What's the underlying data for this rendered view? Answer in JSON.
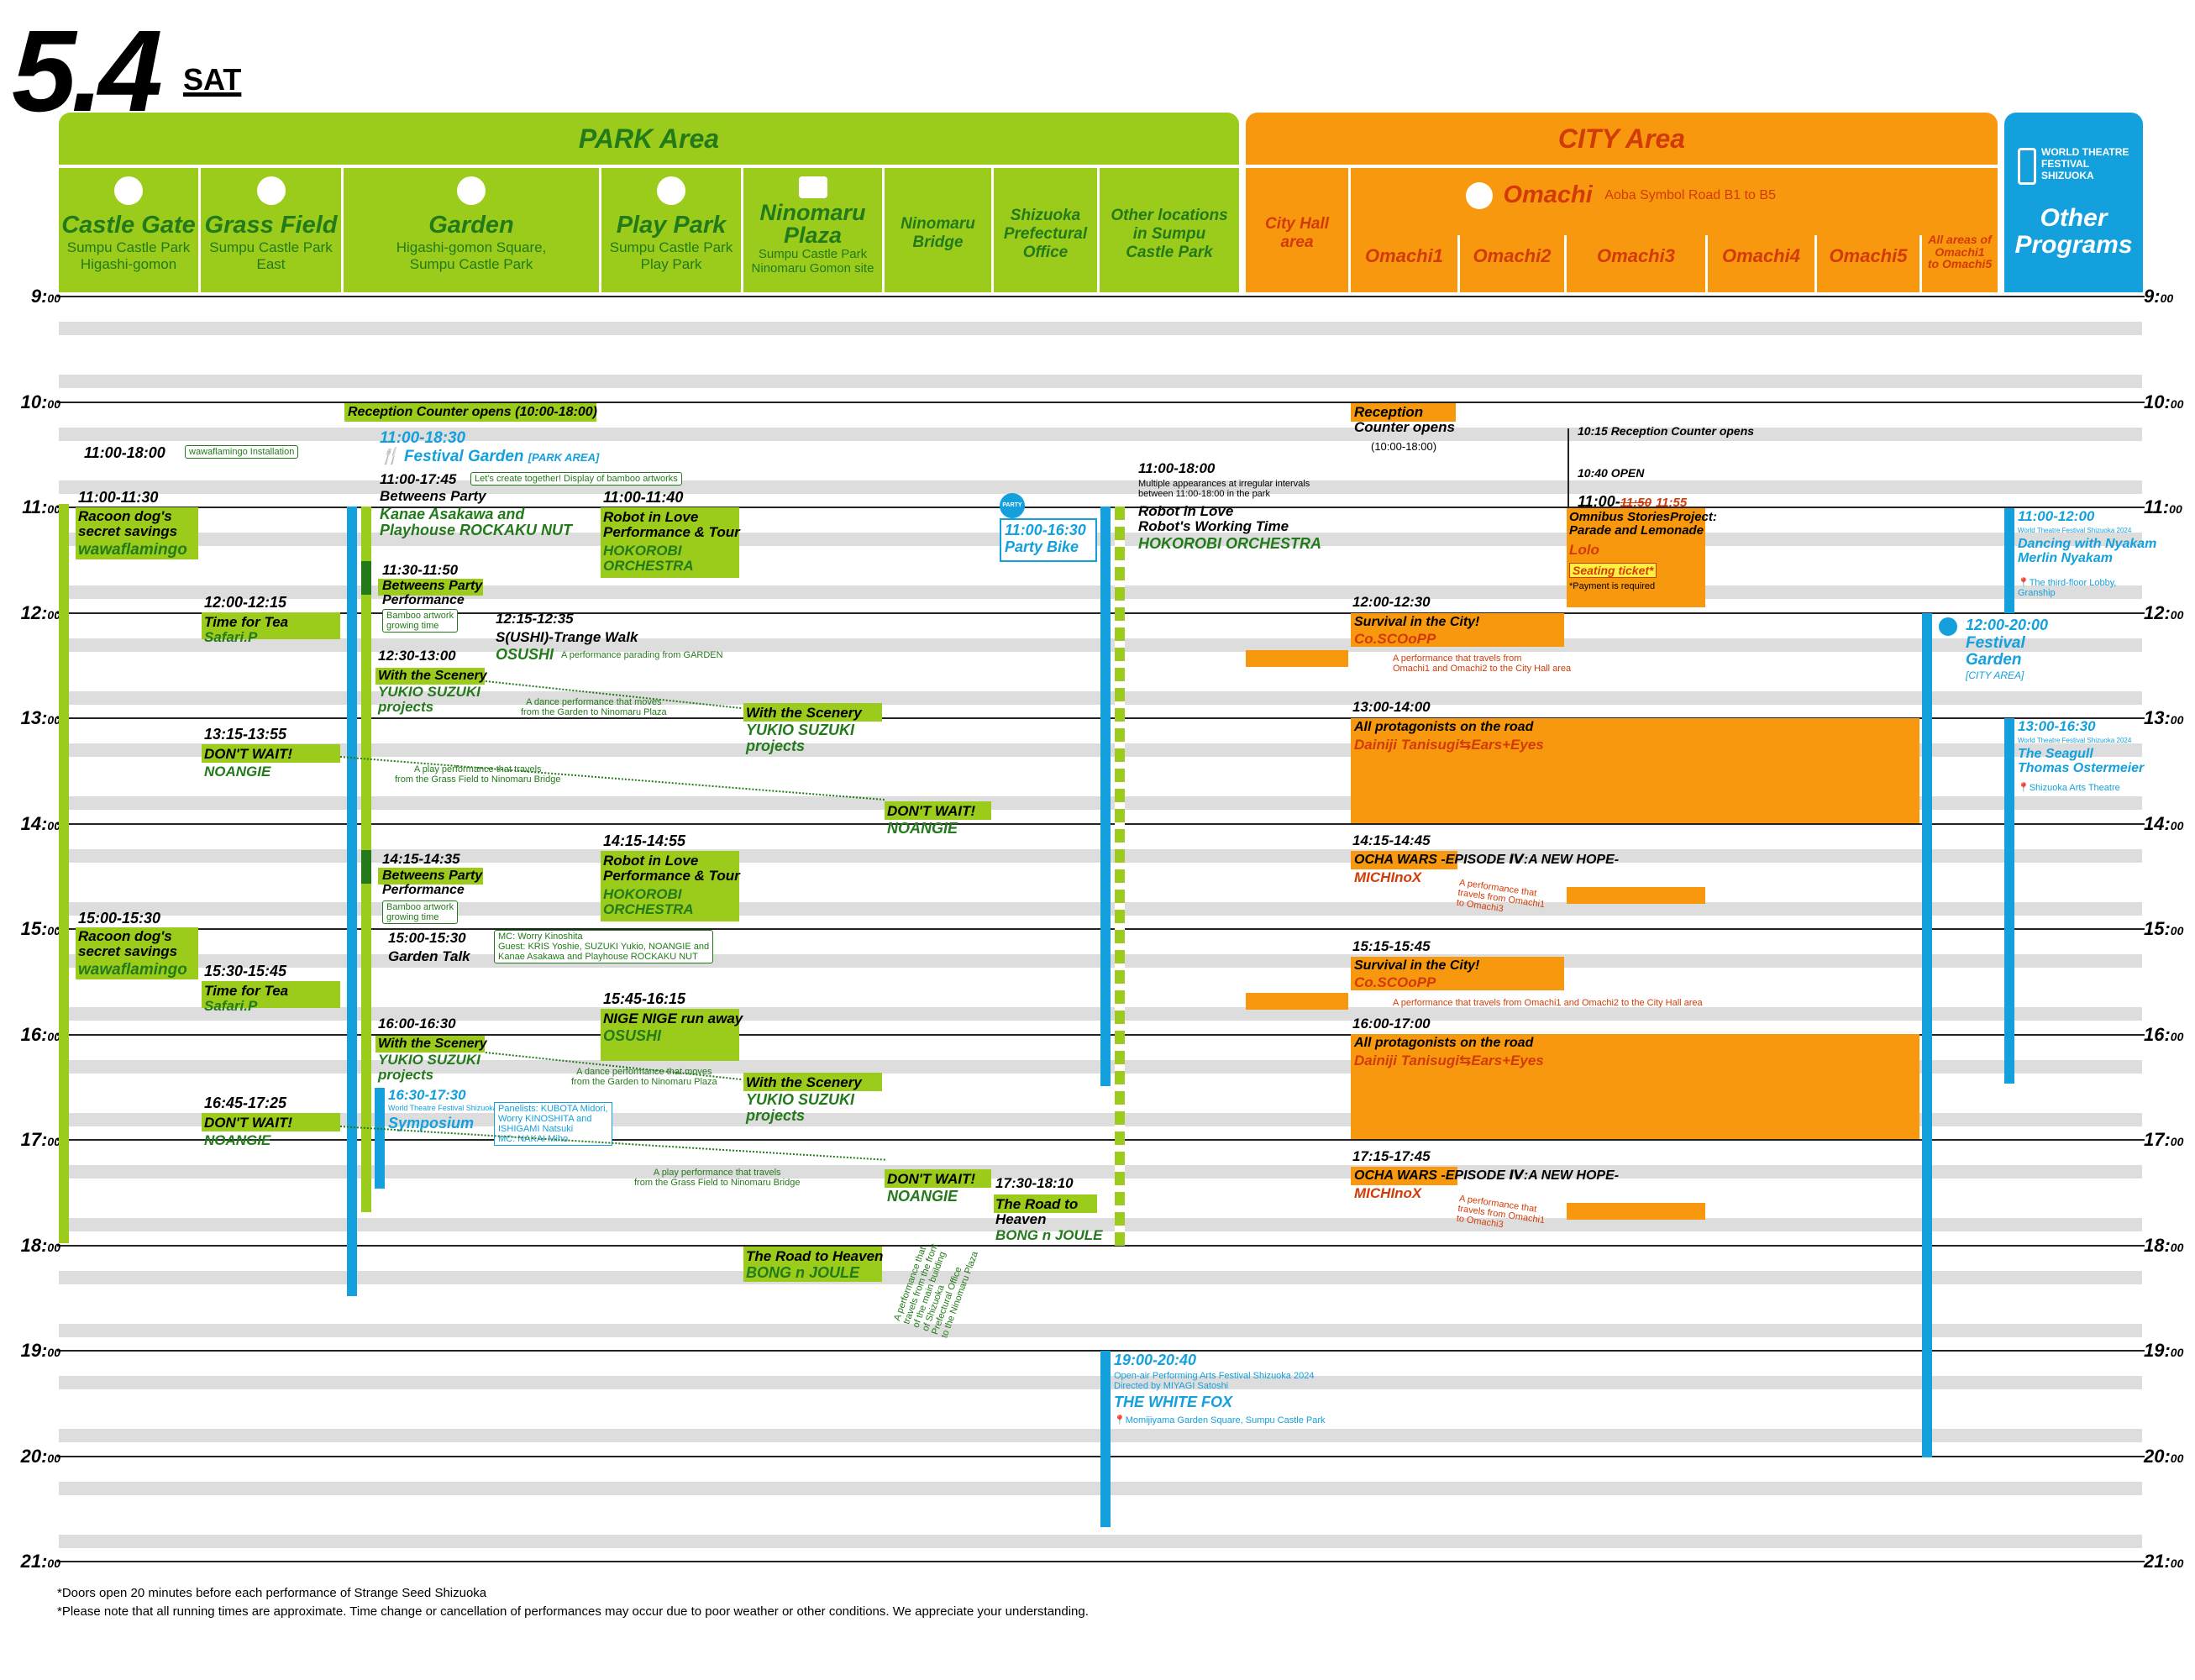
{
  "date": {
    "day": "5.4",
    "weekday": "SAT"
  },
  "areas": {
    "park": "PARK Area",
    "city": "CITY Area"
  },
  "logo": {
    "line1": "WORLD THEATRE",
    "line2": "FESTIVAL",
    "line3": "SHIZUOKA",
    "other": "Other\nPrograms"
  },
  "columns": {
    "castle": {
      "name": "Castle Gate",
      "sub": "Sumpu Castle Park\nHigashi-gomon"
    },
    "grass": {
      "name": "Grass Field",
      "sub": "Sumpu Castle Park\nEast"
    },
    "garden": {
      "name": "Garden",
      "sub": "Higashi-gomon Square,\nSumpu Castle Park"
    },
    "play": {
      "name": "Play Park",
      "sub": "Sumpu Castle Park\nPlay Park"
    },
    "ninomaru": {
      "name": "Ninomaru\nPlaza",
      "sub": "Sumpu Castle Park\nNinomaru Gomon site"
    },
    "bridge": {
      "name": "Ninomaru\nBridge"
    },
    "pref": {
      "name": "Shizuoka\nPrefectural\nOffice"
    },
    "otherloc": {
      "name": "Other locations\nin Sumpu\nCastle Park"
    },
    "cityhall": {
      "name": "City Hall\narea"
    },
    "omachi": {
      "name": "Omachi",
      "sub": "Aoba Symbol Road B1 to B5"
    },
    "o1": "Omachi1",
    "o2": "Omachi2",
    "o3": "Omachi3",
    "o4": "Omachi4",
    "o5": "Omachi5",
    "all": "All areas of\nOmachi1\nto Omachi5"
  },
  "hours": [
    "9:00",
    "10:00",
    "11:00",
    "12:00",
    "13:00",
    "14:00",
    "15:00",
    "16:00",
    "17:00",
    "18:00",
    "19:00",
    "20:00",
    "21:00"
  ],
  "events": {
    "reception_park": "Reception Counter opens (10:00-18:00)",
    "waw_install_time": "11:00-18:00",
    "waw_install": "wawaflamingo Installation",
    "fg_time": "11:00-18:30",
    "fg": "Festival Garden",
    "fg_tag": "[PARK AREA]",
    "bp_time": "11:00-17:45",
    "bp": "Betweens Party",
    "bp_note": "Let's create together! Display of bamboo artworks",
    "kanae": "Kanae Asakawa and\nPlayhouse ROCKAKU NUT",
    "racoon1_time": "11:00-11:30",
    "racoon1": "Racoon dog's\nsecret savings",
    "racoon1_co": "wawaflamingo",
    "robot1_time": "11:00-11:40",
    "robot1": "Robot in Love\nPerformance & Tour",
    "robot1_co": "HOKOROBI\nORCHESTRA",
    "bike_time": "11:00-16:30",
    "bike": "Party Bike",
    "bike_tag": "PARTY BIKE",
    "rlo_time": "11:00-18:00",
    "rlo_note": "Multiple appearances at irregular intervals\nbetween 11:00-18:00 in the park",
    "rlo": "Robot in Love\nRobot's Working Time",
    "rlo_co": "HOKOROBI ORCHESTRA",
    "bpp1_time": "11:30-11:50",
    "bpp1": "Betweens Party\nPerformance",
    "bamboo": "Bamboo artwork\ngrowing time",
    "tea1_time": "12:00-12:15",
    "tea1": "Time for Tea",
    "tea1_co": "Safari.P",
    "sushi_time": "12:15-12:35",
    "sushi": "S(USHI)-Trange Walk",
    "sushi_co": "OSUSHI",
    "sushi_note": "A performance parading from GARDEN",
    "scenery1_time": "12:30-13:00",
    "scenery": "With the Scenery",
    "scenery_co": "YUKIO SUZUKI\nprojects",
    "scenery_note": "A dance performance that moves\nfrom the Garden to Ninomaru Plaza",
    "dw1_time": "13:15-13:55",
    "dw": "DON'T WAIT!",
    "dw_co": "NOANGIE",
    "dw_note": "A play performance that travels\nfrom the Grass Field to Ninomaru Bridge",
    "bpp2_time": "14:15-14:35",
    "robot2_time": "14:15-14:55",
    "racoon2_time": "15:00-15:30",
    "gt_time": "15:00-15:30",
    "gt": "Garden Talk",
    "gt_note": "MC: Worry Kinoshita\nGuest: KRIS Yoshie, SUZUKI Yukio, NOANGIE and\nKanae Asakawa and Playhouse ROCKAKU NUT",
    "tea2_time": "15:30-15:45",
    "nige_time": "15:45-16:15",
    "nige": "NIGE NIGE run away",
    "nige_co": "OSUSHI",
    "scenery2_time": "16:00-16:30",
    "sym_time": "16:30-17:30",
    "sym_sub": "World Theatre Festival Shizuoka 2024",
    "sym": "Symposium",
    "sym_note": "Panelists: KUBOTA Midori,\nWorry KINOSHITA and\nISHIGAMI Natsuki\nMC: NAKAI Miho",
    "dw2_time": "16:45-17:25",
    "road_time": "17:30-18:10",
    "road": "The Road to\nHeaven",
    "road_co": "BONG n JOULE",
    "road2": "The Road to Heaven",
    "road_note": "A performance that\ntravels from the front\nof the main building\nof Shizuoka\nPrefectural Office\nto the Ninomaru Plaza",
    "fox_time": "19:00-20:40",
    "fox_sub": "Open-air Performing Arts Festival Shizuoka 2024\nDirected by MIYAGI Satoshi",
    "fox": "THE WHITE FOX",
    "fox_place": "Momijiyama Garden Square, Sumpu Castle Park",
    "rec_city": "Reception\nCounter opens",
    "rec_city_time": "(10:00-18:00)",
    "rec1015": "10:15 Reception Counter opens",
    "open1040": "10:40 OPEN",
    "omni_time": "11:00-",
    "omni_old": "11:50",
    "omni_new": "11:55",
    "omni": "Omnibus StoriesProject:\nParade and Lemonade",
    "omni_co": "Lolo",
    "omni_ticket": "Seating ticket*",
    "omni_pay": "*Payment is required",
    "surv1_time": "12:00-12:30",
    "surv": "Survival in the City!",
    "surv_co": "Co.SCOoPP",
    "surv_note1": "A performance that travels from\nOmachi1 and Omachi2 to the City Hall area",
    "prot1_time": "13:00-14:00",
    "prot": "All protagonists on the road",
    "prot_co": "Dainiji Tanisugi⇆Ears+Eyes",
    "ocha1_time": "14:15-14:45",
    "ocha": "OCHA WARS -EPISODE Ⅳ:A NEW HOPE-",
    "ocha_co": "MICHInoX",
    "ocha_note": "A performance that\ntravels from Omachi1\nto Omachi3",
    "surv2_time": "15:15-15:45",
    "surv_note2": "A performance that travels from Omachi1 and Omachi2 to the City Hall area",
    "prot2_time": "16:00-17:00",
    "ocha2_time": "17:15-17:45",
    "fgc_time": "12:00-20:00",
    "fgc": "Festival\nGarden",
    "fgc_tag": "[CITY AREA]",
    "dance_time": "11:00-12:00",
    "dance_sub": "World Theatre Festival Shizuoka 2024",
    "dance": "Dancing with Nyakam\nMerlin Nyakam",
    "dance_place": "The third-floor Lobby,\nGranship",
    "gull_time": "13:00-16:30",
    "gull_sub": "World Theatre Festival Shizuoka 2024",
    "gull": "The Seagull\nThomas Ostermeier",
    "gull_place": "Shizuoka Arts Theatre"
  },
  "footer": {
    "l1": "*Doors open 20 minutes before each performance of Strange Seed Shizuoka",
    "l2": "*Please note that all running times are approximate. Time change or cancellation of performances may occur due to poor weather or other conditions. We appreciate your understanding."
  },
  "colors": {
    "park": "#9bcc1b",
    "city": "#f8980f",
    "other": "#13a0dc",
    "darkgreen": "#237a1a",
    "red": "#d23b07"
  }
}
